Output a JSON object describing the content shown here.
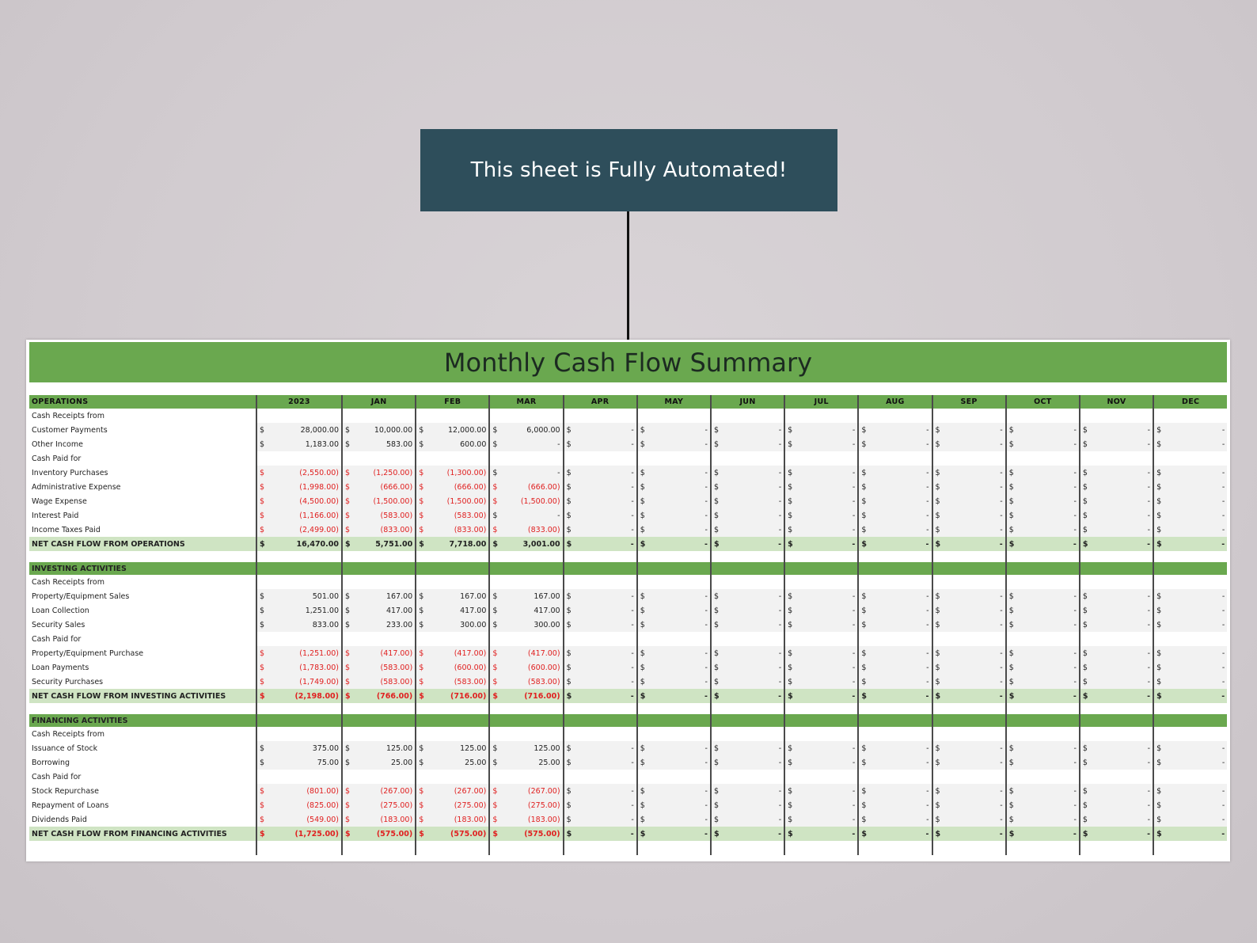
{
  "banner": {
    "text": "This sheet is Fully Automated!"
  },
  "sheet": {
    "title": "Monthly Cash Flow Summary",
    "header": {
      "first": "OPERATIONS",
      "columns": [
        "2023",
        "JAN",
        "FEB",
        "MAR",
        "APR",
        "MAY",
        "JUN",
        "JUL",
        "AUG",
        "SEP",
        "OCT",
        "NOV",
        "DEC"
      ]
    },
    "currency": "$",
    "empty_value": "-",
    "sections": [
      {
        "title": "",
        "groups": [
          {
            "label": "Cash Receipts from",
            "items": [
              {
                "label": "Customer Payments",
                "values": [
                  "28,000.00",
                  "10,000.00",
                  "12,000.00",
                  "6,000.00"
                ],
                "negative": false
              },
              {
                "label": "Other Income",
                "values": [
                  "1,183.00",
                  "583.00",
                  "600.00",
                  "-"
                ],
                "negative": false
              }
            ]
          },
          {
            "label": "Cash Paid for",
            "items": [
              {
                "label": "Inventory Purchases",
                "values": [
                  "(2,550.00)",
                  "(1,250.00)",
                  "(1,300.00)",
                  "-"
                ],
                "negative": true
              },
              {
                "label": "Administrative Expense",
                "values": [
                  "(1,998.00)",
                  "(666.00)",
                  "(666.00)",
                  "(666.00)"
                ],
                "negative": true
              },
              {
                "label": "Wage Expense",
                "values": [
                  "(4,500.00)",
                  "(1,500.00)",
                  "(1,500.00)",
                  "(1,500.00)"
                ],
                "negative": true
              },
              {
                "label": "Interest Paid",
                "values": [
                  "(1,166.00)",
                  "(583.00)",
                  "(583.00)",
                  "-"
                ],
                "negative": true
              },
              {
                "label": "Income Taxes Paid",
                "values": [
                  "(2,499.00)",
                  "(833.00)",
                  "(833.00)",
                  "(833.00)"
                ],
                "negative": true
              }
            ]
          }
        ],
        "total": {
          "label": "NET CASH FLOW FROM OPERATIONS",
          "values": [
            "16,470.00",
            "5,751.00",
            "7,718.00",
            "3,001.00"
          ],
          "negative": false
        }
      },
      {
        "title": "INVESTING ACTIVITIES",
        "groups": [
          {
            "label": "Cash Receipts from",
            "items": [
              {
                "label": "Property/Equipment Sales",
                "values": [
                  "501.00",
                  "167.00",
                  "167.00",
                  "167.00"
                ],
                "negative": false
              },
              {
                "label": "Loan Collection",
                "values": [
                  "1,251.00",
                  "417.00",
                  "417.00",
                  "417.00"
                ],
                "negative": false
              },
              {
                "label": "Security Sales",
                "values": [
                  "833.00",
                  "233.00",
                  "300.00",
                  "300.00"
                ],
                "negative": false
              }
            ]
          },
          {
            "label": "Cash Paid for",
            "items": [
              {
                "label": "Property/Equipment Purchase",
                "values": [
                  "(1,251.00)",
                  "(417.00)",
                  "(417.00)",
                  "(417.00)"
                ],
                "negative": true
              },
              {
                "label": "Loan Payments",
                "values": [
                  "(1,783.00)",
                  "(583.00)",
                  "(600.00)",
                  "(600.00)"
                ],
                "negative": true
              },
              {
                "label": "Security Purchases",
                "values": [
                  "(1,749.00)",
                  "(583.00)",
                  "(583.00)",
                  "(583.00)"
                ],
                "negative": true
              }
            ]
          }
        ],
        "total": {
          "label": "NET CASH FLOW FROM INVESTING ACTIVITIES",
          "values": [
            "(2,198.00)",
            "(766.00)",
            "(716.00)",
            "(716.00)"
          ],
          "negative": true
        }
      },
      {
        "title": "FINANCING ACTIVITIES",
        "groups": [
          {
            "label": "Cash Receipts from",
            "items": [
              {
                "label": "Issuance of Stock",
                "values": [
                  "375.00",
                  "125.00",
                  "125.00",
                  "125.00"
                ],
                "negative": false
              },
              {
                "label": "Borrowing",
                "values": [
                  "75.00",
                  "25.00",
                  "25.00",
                  "25.00"
                ],
                "negative": false
              }
            ]
          },
          {
            "label": "Cash Paid for",
            "items": [
              {
                "label": "Stock Repurchase",
                "values": [
                  "(801.00)",
                  "(267.00)",
                  "(267.00)",
                  "(267.00)"
                ],
                "negative": true
              },
              {
                "label": "Repayment of Loans",
                "values": [
                  "(825.00)",
                  "(275.00)",
                  "(275.00)",
                  "(275.00)"
                ],
                "negative": true
              },
              {
                "label": "Dividends Paid",
                "values": [
                  "(549.00)",
                  "(183.00)",
                  "(183.00)",
                  "(183.00)"
                ],
                "negative": true
              }
            ]
          }
        ],
        "total": {
          "label": "NET CASH FLOW FROM FINANCING ACTIVITIES",
          "values": [
            "(1,725.00)",
            "(575.00)",
            "(575.00)",
            "(575.00)"
          ],
          "negative": true
        }
      }
    ],
    "colors": {
      "banner": "#2e4e5b",
      "green": "#6aa84f",
      "total_row": "#cfe4c3",
      "negative": "#e02020"
    }
  }
}
